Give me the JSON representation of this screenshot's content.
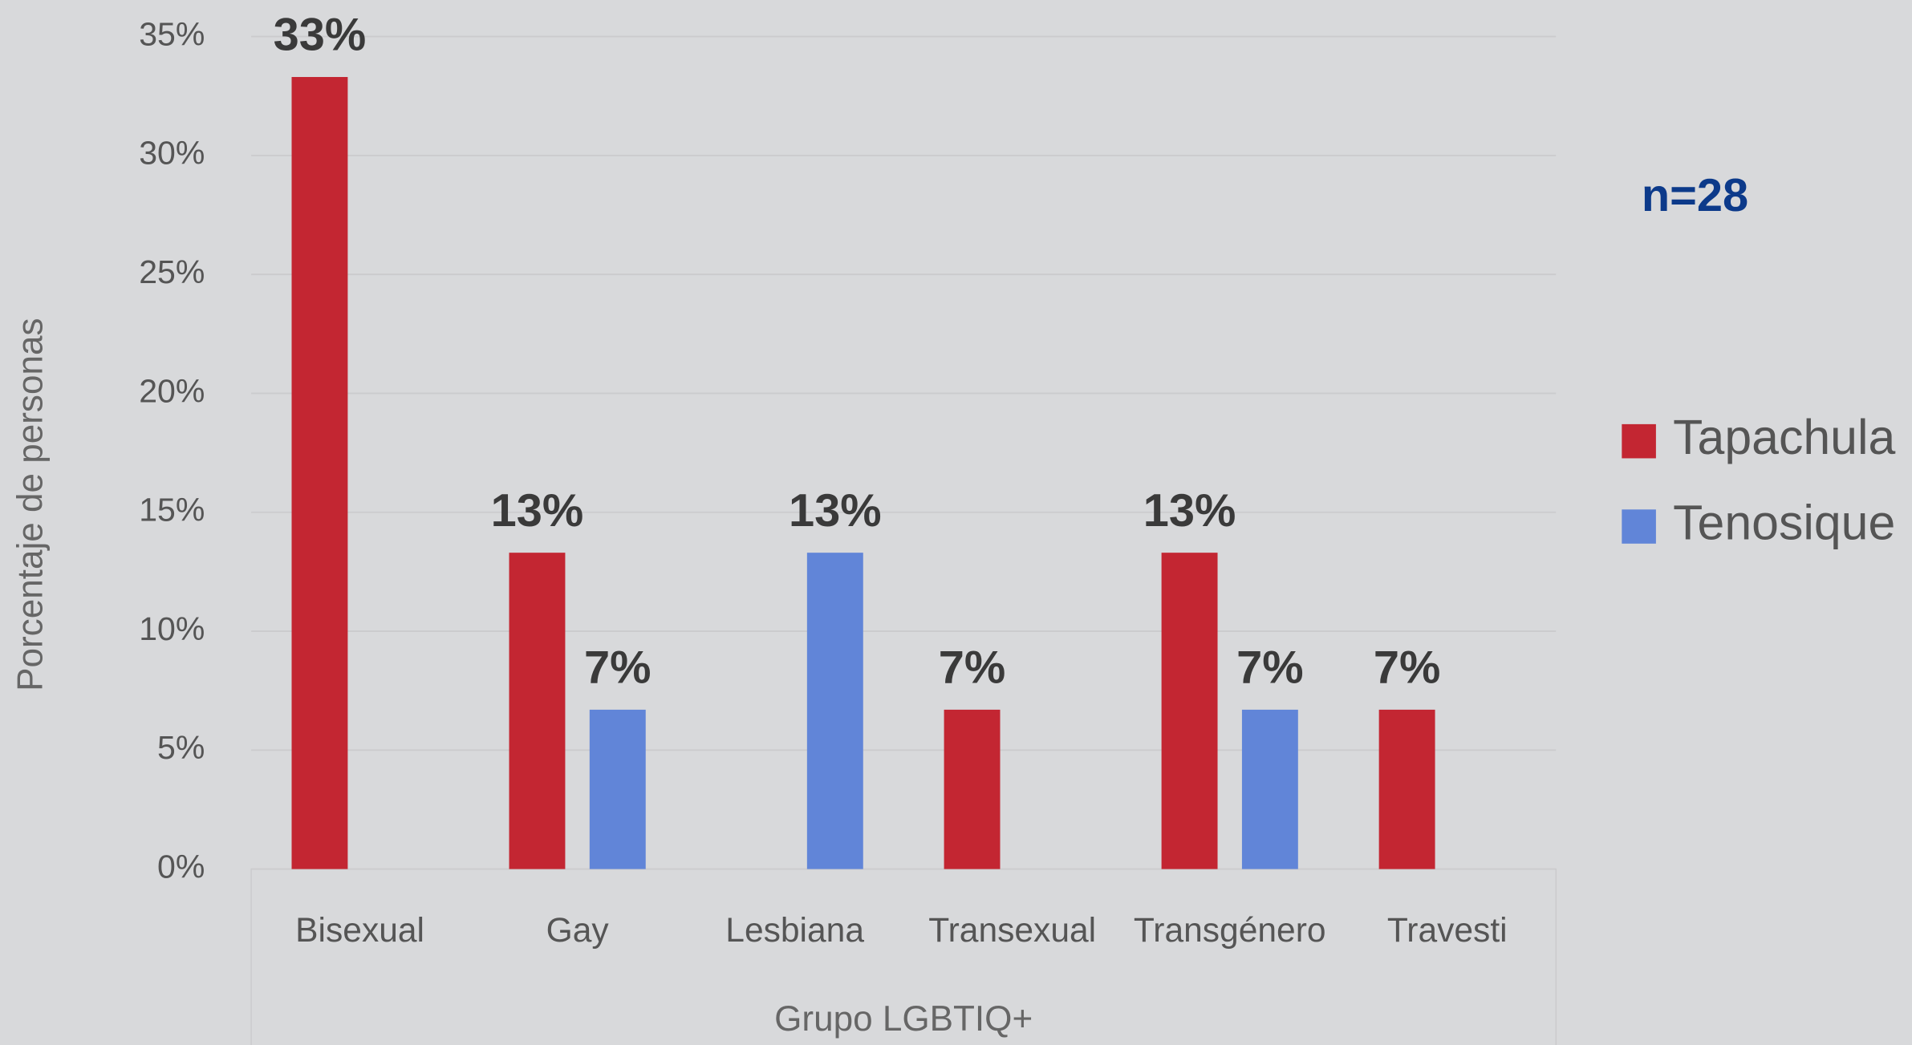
{
  "chart_data": {
    "type": "bar",
    "x_label": "Grupo LGBTIQ+",
    "y_label": "Porcentaje de personas",
    "annotation": "n=28",
    "categories": [
      "Bisexual",
      "Gay",
      "Lesbiana",
      "Transexual",
      "Transgénero",
      "Travesti"
    ],
    "series": [
      {
        "name": "Tapachula",
        "color": "#c32632",
        "values": [
          33.3,
          13.3,
          null,
          6.7,
          13.3,
          6.7
        ],
        "value_labels": [
          "33%",
          "13%",
          null,
          "7%",
          "13%",
          "7%"
        ]
      },
      {
        "name": "Tenosique",
        "color": "#6185d8",
        "values": [
          null,
          6.7,
          13.3,
          null,
          6.7,
          null
        ],
        "value_labels": [
          null,
          "7%",
          "13%",
          null,
          "7%",
          null
        ]
      }
    ],
    "ylim": [
      0,
      35
    ],
    "yticks": [
      {
        "value": 0,
        "label": "0%"
      },
      {
        "value": 5,
        "label": "5%"
      },
      {
        "value": 10,
        "label": "10%"
      },
      {
        "value": 15,
        "label": "15%"
      },
      {
        "value": 20,
        "label": "20%"
      },
      {
        "value": 25,
        "label": "25%"
      },
      {
        "value": 30,
        "label": "30%"
      },
      {
        "value": 35,
        "label": "35%"
      }
    ],
    "grid": true,
    "legend": "right"
  }
}
